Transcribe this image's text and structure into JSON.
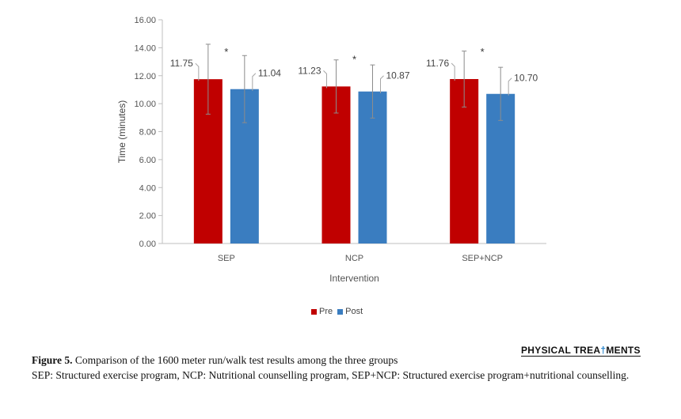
{
  "chart_data": {
    "type": "bar",
    "categories": [
      "SEP",
      "NCP",
      "SEP+NCP"
    ],
    "series": [
      {
        "name": "Pre",
        "color": "#C00000",
        "values": [
          11.75,
          11.23,
          11.76
        ],
        "error": [
          2.5,
          1.9,
          2.0
        ]
      },
      {
        "name": "Post",
        "color": "#3A7DC0",
        "values": [
          11.04,
          10.87,
          10.7
        ],
        "error": [
          2.4,
          1.9,
          1.9
        ]
      }
    ],
    "data_labels": {
      "pre": [
        "11.75",
        "11.23",
        "11.76"
      ],
      "post": [
        "11.04",
        "10.87",
        "10.70"
      ]
    },
    "significance_marker": "*",
    "xlabel": "Intervention",
    "ylabel": "Time (minutes)",
    "ylim": [
      0,
      16
    ],
    "yticks": [
      "0.00",
      "2.00",
      "4.00",
      "6.00",
      "8.00",
      "10.00",
      "12.00",
      "14.00",
      "16.00"
    ],
    "legend_position": "bottom",
    "grid": false
  },
  "brand": {
    "part1": "PHYSICAL TREA",
    "mark": "†",
    "part2": "MENTS"
  },
  "caption": {
    "label": "Figure 5.",
    "text": " Comparison of the 1600 meter run/walk test results among the three groups",
    "note": "SEP: Structured exercise program, NCP: Nutritional counselling program, SEP+NCP: Structured exercise program+nutritional counselling."
  }
}
